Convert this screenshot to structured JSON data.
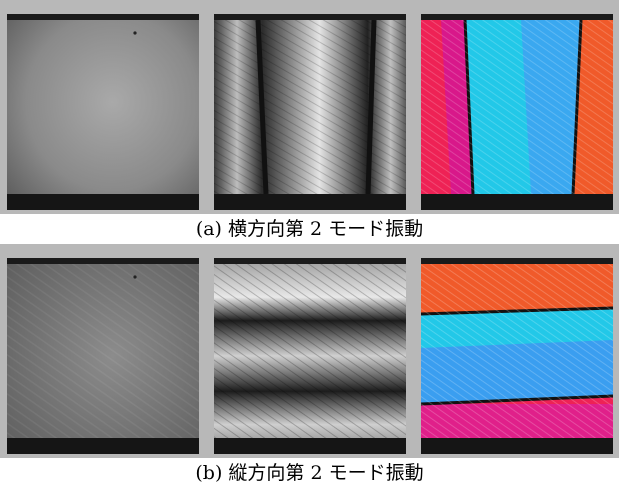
{
  "captions": {
    "a": "(a) 横方向第 2 モード振動",
    "b": "(b) 縦方向第 2 モード振動"
  },
  "colors": {
    "frame": "#b8b8b8",
    "phase_cyan": "#22c8e8",
    "phase_red": "#ee2255",
    "phase_magenta": "#e0208a",
    "phase_orange": "#f05a2a"
  }
}
